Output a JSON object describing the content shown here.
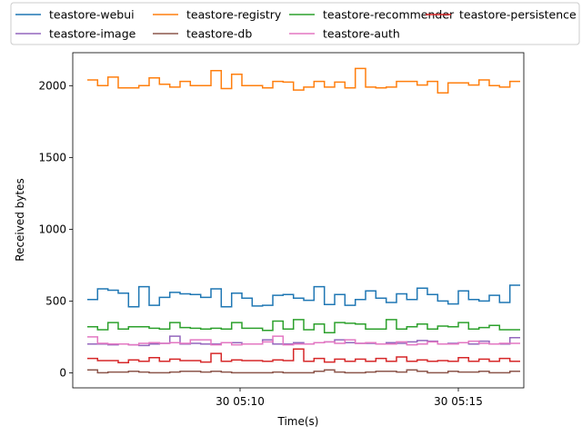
{
  "chart_data": {
    "type": "line",
    "xlabel": "Time(s)",
    "ylabel": "Received bytes",
    "xlim": [
      "05:06:10",
      "05:16:30"
    ],
    "ylim": [
      -105,
      2230
    ],
    "yticks": [
      0,
      500,
      1000,
      1500,
      2000
    ],
    "xticks": [
      {
        "time": "05:10:00",
        "label": "30 05:10"
      },
      {
        "time": "05:15:00",
        "label": "30 05:15"
      }
    ],
    "x": [
      "05:06:00",
      "05:06:15",
      "05:06:30",
      "05:06:45",
      "05:07:00",
      "05:07:15",
      "05:07:30",
      "05:07:45",
      "05:08:00",
      "05:08:15",
      "05:08:30",
      "05:08:45",
      "05:09:00",
      "05:09:15",
      "05:09:30",
      "05:09:45",
      "05:10:00",
      "05:10:15",
      "05:10:30",
      "05:10:45",
      "05:11:00",
      "05:11:15",
      "05:11:30",
      "05:11:45",
      "05:12:00",
      "05:12:15",
      "05:12:30",
      "05:12:45",
      "05:13:00",
      "05:13:15",
      "05:13:30",
      "05:13:45",
      "05:14:00",
      "05:14:15",
      "05:14:30",
      "05:14:45",
      "05:15:00",
      "05:15:15",
      "05:15:30",
      "05:15:45",
      "05:16:00",
      "05:16:15"
    ],
    "legend_position": "top-center",
    "grid": false,
    "series": [
      {
        "name": "teastore-webui",
        "color": "#1f77b4",
        "values": [
          510,
          585,
          575,
          555,
          460,
          600,
          470,
          525,
          560,
          550,
          545,
          525,
          585,
          460,
          555,
          520,
          465,
          470,
          540,
          545,
          520,
          505,
          600,
          475,
          545,
          470,
          510,
          570,
          520,
          490,
          550,
          510,
          590,
          545,
          500,
          480,
          570,
          510,
          500,
          540,
          490,
          610
        ]
      },
      {
        "name": "teastore-registry",
        "color": "#ff7f0e",
        "values": [
          2040,
          2000,
          2060,
          1985,
          1985,
          2000,
          2055,
          2010,
          1990,
          2030,
          2000,
          2000,
          2105,
          1980,
          2080,
          2000,
          2000,
          1985,
          2030,
          2025,
          1970,
          1990,
          2030,
          1990,
          2025,
          1985,
          2120,
          1990,
          1985,
          1990,
          2030,
          2030,
          2005,
          2030,
          1950,
          2020,
          2020,
          2005,
          2040,
          2000,
          1990,
          2030
        ]
      },
      {
        "name": "teastore-recommender",
        "color": "#2ca02c",
        "values": [
          320,
          300,
          350,
          305,
          320,
          320,
          310,
          305,
          350,
          315,
          310,
          305,
          310,
          305,
          350,
          310,
          310,
          295,
          360,
          305,
          370,
          300,
          340,
          280,
          350,
          345,
          340,
          305,
          305,
          370,
          305,
          320,
          340,
          305,
          325,
          320,
          350,
          305,
          315,
          330,
          300,
          300
        ]
      },
      {
        "name": "teastore-persistence",
        "color": "#d62728",
        "values": [
          100,
          85,
          85,
          70,
          90,
          80,
          105,
          80,
          95,
          85,
          85,
          75,
          135,
          80,
          90,
          85,
          85,
          80,
          90,
          85,
          165,
          80,
          100,
          75,
          95,
          80,
          95,
          80,
          100,
          80,
          110,
          80,
          90,
          80,
          85,
          80,
          105,
          80,
          95,
          80,
          100,
          80
        ]
      },
      {
        "name": "teastore-image",
        "color": "#9467bd",
        "values": [
          200,
          200,
          195,
          200,
          195,
          190,
          200,
          205,
          255,
          200,
          205,
          200,
          200,
          210,
          210,
          200,
          200,
          230,
          200,
          200,
          210,
          200,
          210,
          215,
          230,
          210,
          205,
          205,
          200,
          210,
          205,
          215,
          225,
          220,
          200,
          205,
          210,
          200,
          220,
          200,
          200,
          245
        ]
      },
      {
        "name": "teastore-db",
        "color": "#8c564b",
        "values": [
          20,
          0,
          5,
          5,
          10,
          5,
          0,
          0,
          5,
          10,
          10,
          5,
          10,
          5,
          0,
          0,
          0,
          0,
          5,
          0,
          0,
          0,
          10,
          20,
          5,
          0,
          0,
          5,
          10,
          10,
          5,
          20,
          10,
          0,
          0,
          10,
          5,
          5,
          10,
          0,
          0,
          10
        ]
      },
      {
        "name": "teastore-auth",
        "color": "#e377c2",
        "values": [
          250,
          205,
          200,
          200,
          195,
          205,
          210,
          205,
          210,
          205,
          230,
          230,
          195,
          210,
          195,
          200,
          200,
          215,
          255,
          195,
          200,
          200,
          210,
          215,
          205,
          230,
          205,
          210,
          200,
          200,
          215,
          195,
          200,
          215,
          200,
          200,
          210,
          220,
          205,
          200,
          205,
          205
        ]
      }
    ]
  }
}
